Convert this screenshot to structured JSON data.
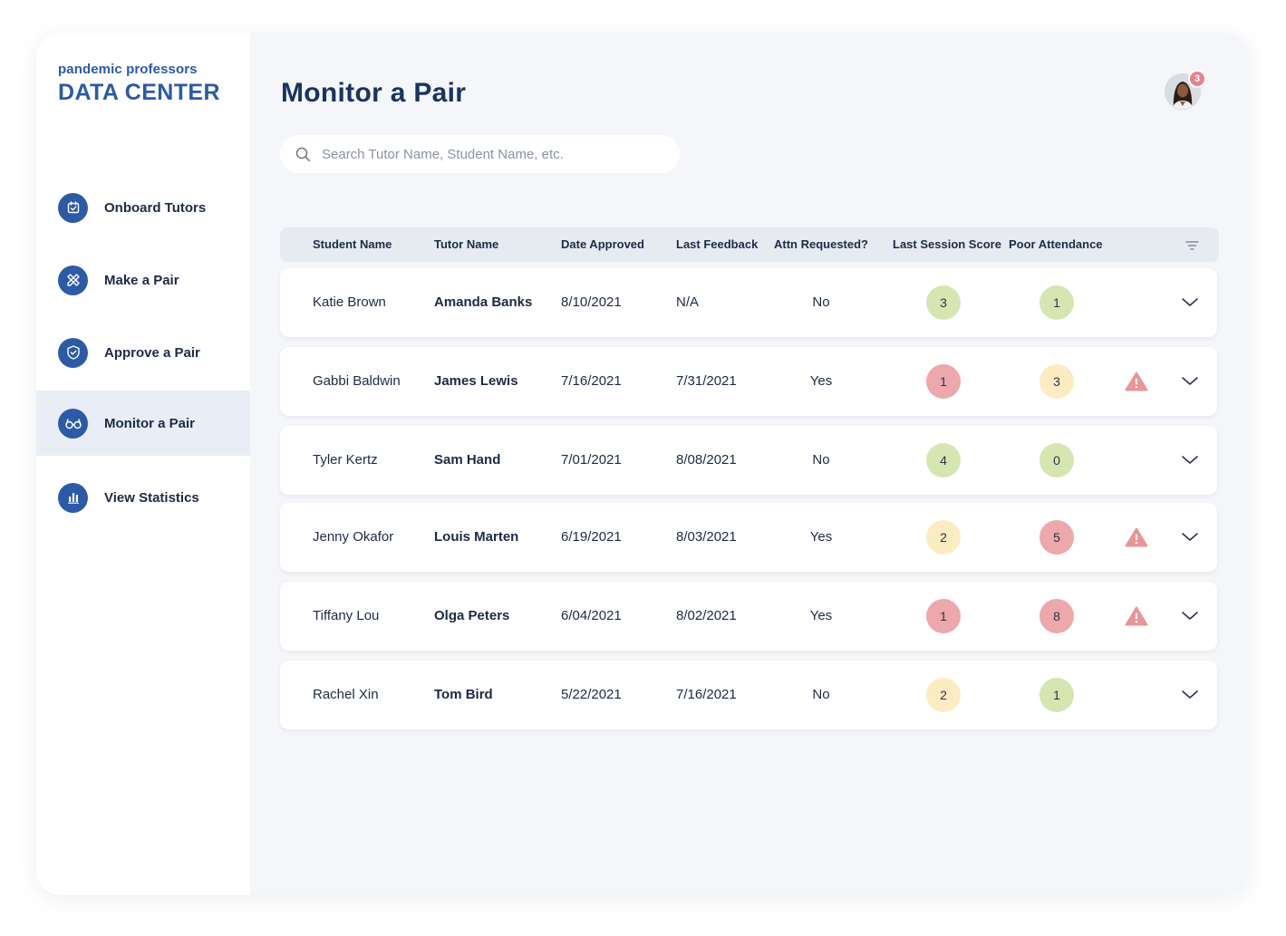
{
  "brand": {
    "small": "pandemic professors",
    "big": "DATA CENTER"
  },
  "nav": [
    {
      "label": "Onboard Tutors",
      "icon": "calendar-check-icon",
      "active": false
    },
    {
      "label": "Make a Pair",
      "icon": "pencil-ruler-icon",
      "active": false
    },
    {
      "label": "Approve a Pair",
      "icon": "shield-check-icon",
      "active": false
    },
    {
      "label": "Monitor a Pair",
      "icon": "glasses-icon",
      "active": true
    },
    {
      "label": "View Statistics",
      "icon": "bar-chart-icon",
      "active": false
    }
  ],
  "page": {
    "title": "Monitor a Pair"
  },
  "user": {
    "notification_count": "3"
  },
  "search": {
    "placeholder": "Search Tutor Name, Student Name, etc.",
    "value": ""
  },
  "table": {
    "headers": [
      "Student Name",
      "Tutor Name",
      "Date Approved",
      "Last Feedback",
      "Attn Requested?",
      "Last Session Score",
      "Poor Attendance"
    ],
    "rows": [
      {
        "student": "Katie Brown",
        "tutor": "Amanda Banks",
        "approved": "8/10/2021",
        "feedback": "N/A",
        "attn": "No",
        "score": "3",
        "score_color": "#d6e6b0",
        "attendance": "1",
        "attendance_color": "#d6e6b0",
        "warning": false
      },
      {
        "student": "Gabbi Baldwin",
        "tutor": "James Lewis",
        "approved": "7/16/2021",
        "feedback": "7/31/2021",
        "attn": "Yes",
        "score": "1",
        "score_color": "#eca8aa",
        "attendance": "3",
        "attendance_color": "#fdebc2",
        "warning": true
      },
      {
        "student": "Tyler Kertz",
        "tutor": "Sam Hand",
        "approved": "7/01/2021",
        "feedback": "8/08/2021",
        "attn": "No",
        "score": "4",
        "score_color": "#d6e6b0",
        "attendance": "0",
        "attendance_color": "#d6e6b0",
        "warning": false
      },
      {
        "student": "Jenny Okafor",
        "tutor": "Louis Marten",
        "approved": "6/19/2021",
        "feedback": "8/03/2021",
        "attn": "Yes",
        "score": "2",
        "score_color": "#fdebc2",
        "attendance": "5",
        "attendance_color": "#eca8aa",
        "warning": true
      },
      {
        "student": "Tiffany Lou",
        "tutor": "Olga Peters",
        "approved": "6/04/2021",
        "feedback": "8/02/2021",
        "attn": "Yes",
        "score": "1",
        "score_color": "#eca8aa",
        "attendance": "8",
        "attendance_color": "#eca8aa",
        "warning": true
      },
      {
        "student": "Rachel Xin",
        "tutor": "Tom Bird",
        "approved": "5/22/2021",
        "feedback": "7/16/2021",
        "attn": "No",
        "score": "2",
        "score_color": "#fdebc2",
        "attendance": "1",
        "attendance_color": "#d6e6b0",
        "warning": false
      }
    ]
  },
  "colors": {
    "accent": "#2c5aa6",
    "warning": "#e8959a",
    "badge": "#e8828e"
  }
}
